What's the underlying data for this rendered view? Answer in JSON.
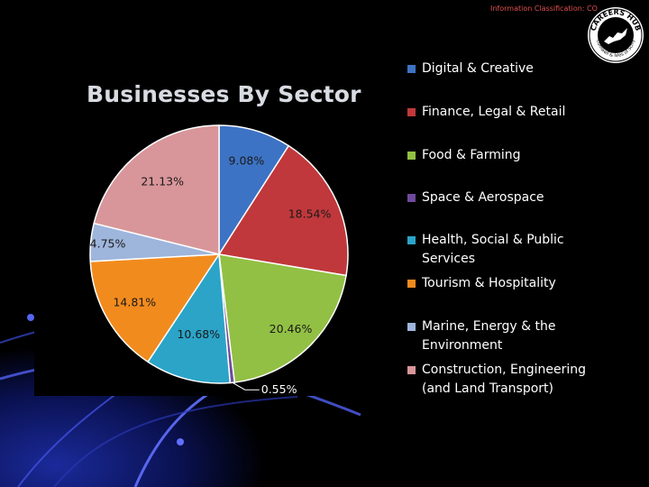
{
  "header": {
    "classification": "Information Classification: CO"
  },
  "logo": {
    "name": "careers-hub-logo",
    "text_top": "CAREERS HUB",
    "text_bottom": "Cornwall & Isles of Scilly"
  },
  "chart_data": {
    "type": "pie",
    "title": "Businesses By Sector",
    "legend_position": "right",
    "slices": [
      {
        "name": "Digital & Creative",
        "value": 9.08,
        "label": "9.08%",
        "color": "#3d73c4"
      },
      {
        "name": "Finance, Legal & Retail",
        "value": 18.54,
        "label": "18.54%",
        "color": "#c0383b"
      },
      {
        "name": "Food & Farming",
        "value": 20.46,
        "label": "20.46%",
        "color": "#92c044"
      },
      {
        "name": "Space & Aerospace",
        "value": 0.55,
        "label": "0.55%",
        "color": "#6e4a9c"
      },
      {
        "name": "Health, Social & Public Services",
        "value": 10.68,
        "label": "10.68%",
        "color": "#2ba4c8"
      },
      {
        "name": "Tourism & Hospitality",
        "value": 14.81,
        "label": "14.81%",
        "color": "#f28b1e"
      },
      {
        "name": "Marine, Energy & the Environment",
        "value": 4.75,
        "label": "4.75%",
        "color": "#9eb5dc"
      },
      {
        "name": "Construction, Engineering (and Land Transport)",
        "value": 21.13,
        "label": "21.13%",
        "color": "#d8969a"
      }
    ]
  },
  "legend": {
    "items": [
      {
        "line1": "Digital & Creative",
        "line2": ""
      },
      {
        "line1": "Finance, Legal & Retail",
        "line2": ""
      },
      {
        "line1": "Food & Farming",
        "line2": ""
      },
      {
        "line1": "Space & Aerospace",
        "line2": ""
      },
      {
        "line1": "Health, Social & Public",
        "line2": "Services"
      },
      {
        "line1": "Tourism & Hospitality",
        "line2": ""
      },
      {
        "line1": "Marine, Energy & the",
        "line2": "Environment"
      },
      {
        "line1": "Construction, Engineering",
        "line2": "(and Land Transport)"
      }
    ]
  }
}
